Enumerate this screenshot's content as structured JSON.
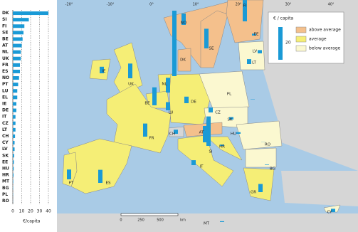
{
  "chart_data": {
    "type": "bar",
    "orientation": "horizontal",
    "categories": [
      "DK",
      "SI",
      "FI",
      "SE",
      "BE",
      "AT",
      "NL",
      "UK",
      "FR",
      "ES",
      "NO",
      "PT",
      "LU",
      "EL",
      "IE",
      "DE",
      "IT",
      "CZ",
      "LT",
      "CH",
      "CY",
      "LV",
      "SK",
      "EE",
      "HU",
      "HR",
      "MT",
      "BG",
      "PL",
      "RO"
    ],
    "values": [
      40,
      18,
      13,
      12,
      11,
      10,
      9,
      9,
      8,
      8,
      7,
      6,
      5,
      5,
      4,
      4,
      3,
      3,
      3,
      2.5,
      2,
      2,
      1.5,
      1.2,
      1,
      0.8,
      0.5,
      0.3,
      0.2,
      0.1
    ],
    "color": "#1a9ad6",
    "xlim": [
      0,
      42
    ],
    "xticks": [
      0,
      10,
      20,
      30,
      40
    ],
    "xlabel": "€/capita",
    "grid": true
  },
  "map": {
    "country_labels": [
      "DK",
      "SI",
      "FI",
      "SE",
      "BE",
      "AT",
      "NL",
      "UK",
      "FR",
      "ES",
      "NO",
      "PT",
      "LU",
      "GR",
      "IE",
      "DE",
      "IT",
      "CZ",
      "LT",
      "CH",
      "CY",
      "LV",
      "SK",
      "EE",
      "HU",
      "HR",
      "MT",
      "BG",
      "PL",
      "RO"
    ],
    "graticule_labels": [
      "-20°",
      "-10°",
      "0°",
      "10°",
      "20°",
      "30°",
      "40°"
    ],
    "legend": {
      "title": "€ / capita",
      "bar_value": 20,
      "items": [
        {
          "label": "above average",
          "color": "#f4c08c"
        },
        {
          "label": "average",
          "color": "#f5ee76"
        },
        {
          "label": "below average",
          "color": "#fbf8d0"
        }
      ]
    },
    "scale_labels": [
      "0",
      "250",
      "500",
      "km"
    ]
  }
}
